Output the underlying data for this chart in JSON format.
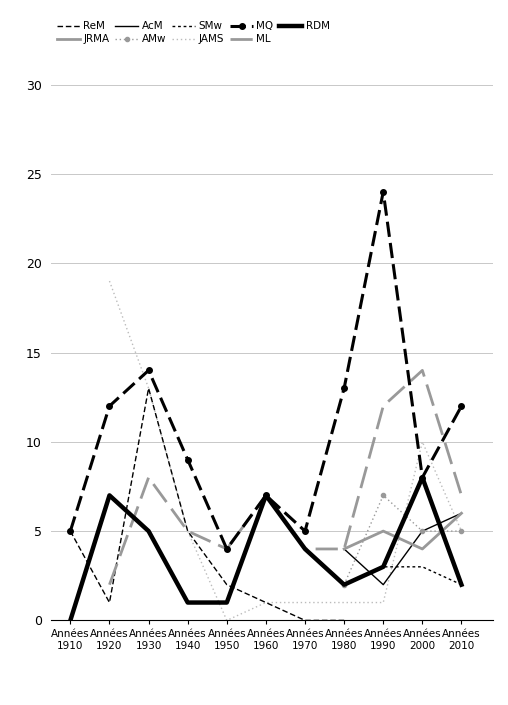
{
  "x_labels": [
    "Années\n1910",
    "Années\n1920",
    "Années\n1930",
    "Années\n1940",
    "Années\n1950",
    "Années\n1960",
    "Années\n1970",
    "Années\n1980",
    "Années\n1990",
    "Années\n2000",
    "Années\n2010"
  ],
  "x_values": [
    1910,
    1920,
    1930,
    1940,
    1950,
    1960,
    1970,
    1980,
    1990,
    2000,
    2010
  ],
  "series_data": {
    "ReM": [
      5,
      1,
      13,
      5,
      2,
      1,
      0,
      0,
      null,
      null,
      null
    ],
    "JRMA": [
      null,
      null,
      null,
      null,
      null,
      null,
      null,
      4,
      5,
      4,
      6
    ],
    "AcM": [
      null,
      null,
      null,
      null,
      null,
      null,
      null,
      4,
      2,
      5,
      6
    ],
    "AMw": [
      null,
      null,
      null,
      null,
      null,
      null,
      null,
      2,
      7,
      5,
      5
    ],
    "SMw": [
      null,
      null,
      null,
      null,
      null,
      null,
      null,
      2,
      3,
      3,
      2
    ],
    "JAMS": [
      null,
      19,
      13,
      5,
      0,
      1,
      1,
      1,
      1,
      10,
      5
    ],
    "MQ": [
      5,
      12,
      14,
      9,
      4,
      7,
      5,
      13,
      24,
      8,
      12
    ],
    "ML": [
      null,
      2,
      8,
      5,
      4,
      7,
      4,
      4,
      12,
      14,
      7
    ],
    "RDM": [
      0,
      7,
      5,
      1,
      1,
      7,
      4,
      2,
      3,
      8,
      2
    ]
  },
  "ylim": [
    0,
    30
  ],
  "yticks": [
    0,
    5,
    10,
    15,
    20,
    25,
    30
  ],
  "legend_row1": [
    "ReM",
    "JRMA",
    "AcM",
    "AMw",
    "SMw"
  ],
  "legend_row2": [
    "JAMS",
    "MQ",
    "ML",
    "RDM"
  ],
  "background_color": "#ffffff",
  "grid_color": "#c8c8c8"
}
